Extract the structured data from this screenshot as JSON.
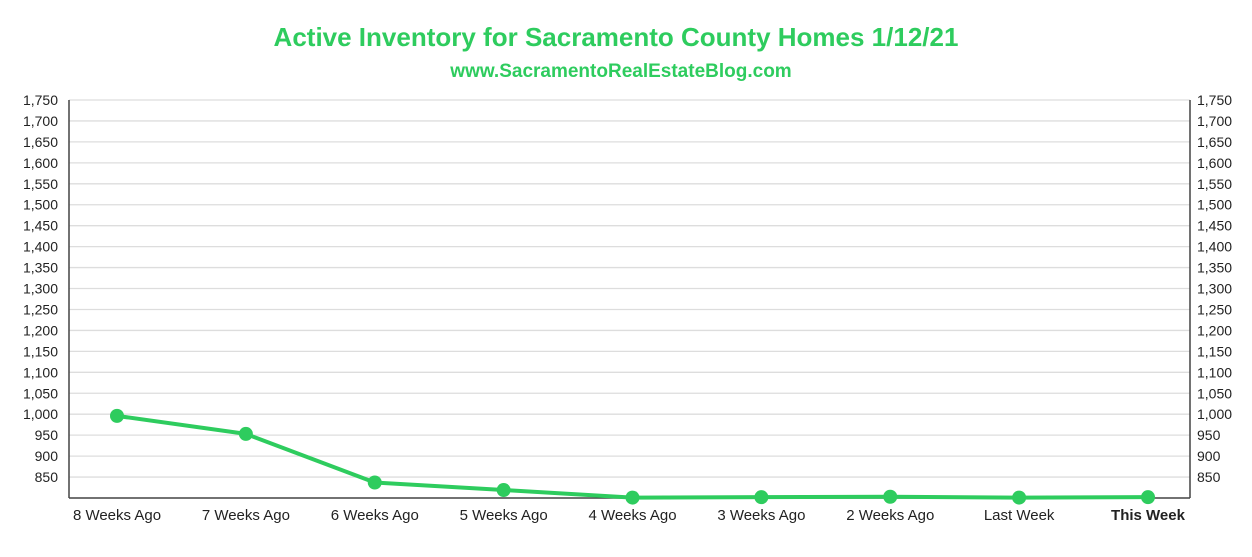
{
  "chart_data": {
    "type": "line",
    "title": "Active Inventory for Sacramento County Homes 1/12/21",
    "subtitle": "www.SacramentoRealEstateBlog.com",
    "xlabel": "",
    "ylabel": "",
    "categories": [
      "8 Weeks Ago",
      "7 Weeks Ago",
      "6 Weeks Ago",
      "5 Weeks Ago",
      "4 Weeks Ago",
      "3 Weeks Ago",
      "2 Weeks Ago",
      "Last Week",
      "This Week"
    ],
    "highlight_category": "This Week",
    "series": [
      {
        "values": [
          996,
          953,
          837,
          819,
          801,
          802,
          803,
          801,
          802
        ]
      }
    ],
    "ylim": [
      800,
      1750
    ],
    "y_ticks": [
      850,
      900,
      950,
      1000,
      1050,
      1100,
      1150,
      1200,
      1250,
      1300,
      1350,
      1400,
      1450,
      1500,
      1550,
      1600,
      1650,
      1700,
      1750
    ],
    "y_tick_labels": [
      "850",
      "900",
      "950",
      "1,000",
      "1,050",
      "1,100",
      "1,150",
      "1,200",
      "1,250",
      "1,300",
      "1,350",
      "1,400",
      "1,450",
      "1,500",
      "1,550",
      "1,600",
      "1,650",
      "1,700",
      "1,750"
    ],
    "grid": true,
    "colors": {
      "line": "#2ecc5e",
      "title": "#2ecc5e",
      "grid": "#dddddd",
      "axis": "#444444"
    }
  }
}
